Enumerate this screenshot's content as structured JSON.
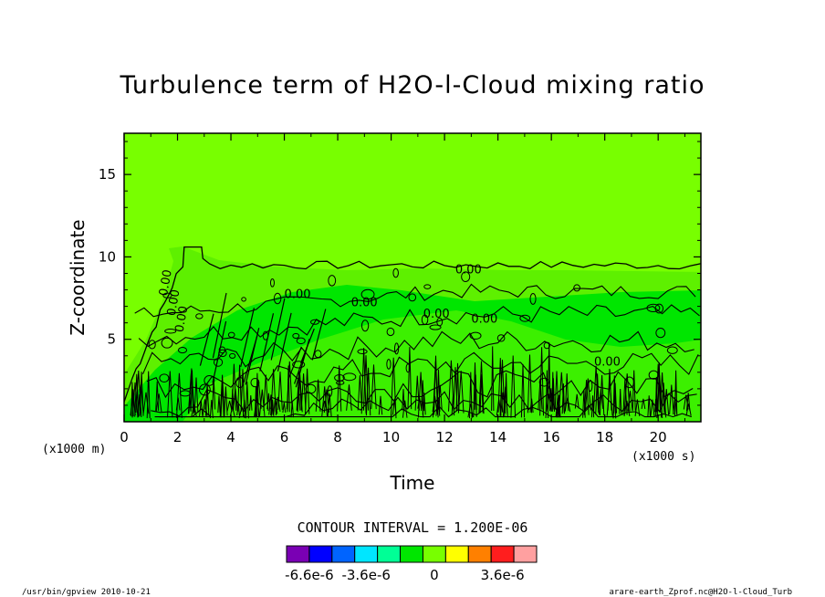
{
  "chart_data": {
    "type": "contour",
    "title": "Turbulence term of H2O-l-Cloud mixing ratio",
    "xlabel": "Time",
    "ylabel": "Z-coordinate",
    "x_unit": "(x1000 s)",
    "y_unit": "(x1000 m)",
    "xlim": [
      0,
      21.6
    ],
    "ylim": [
      0,
      17.5
    ],
    "x_ticks": [
      0,
      2,
      4,
      6,
      8,
      10,
      12,
      14,
      16,
      18,
      20
    ],
    "y_ticks": [
      5,
      10,
      15
    ],
    "contour_interval_text": "CONTOUR INTERVAL = 1.200E-06",
    "contour_labels": [
      "0.00",
      "0.00",
      "0.00",
      "0.00",
      "0.00",
      "0.00",
      "0.00",
      "0.00",
      "0.00"
    ],
    "colorbar": {
      "colors": [
        "#7a00b4",
        "#0000ff",
        "#0064ff",
        "#00e6ff",
        "#00ff96",
        "#00e600",
        "#78ff00",
        "#ffff00",
        "#ff8000",
        "#ff1e1e",
        "#ffa0a0"
      ],
      "tick_labels": [
        "-6.6e-6",
        "-3.6e-6",
        "0",
        "3.6e-6"
      ],
      "tick_values": [
        -6.6e-06,
        -3.6e-06,
        0,
        3.6e-06
      ],
      "range": [
        -7.8e-06,
        5.4e-06
      ]
    },
    "footer_left": "/usr/bin/gpview  2010-10-21",
    "footer_right": "arare-earth_Zprof.nc@H2O-l-Cloud_Turb"
  }
}
